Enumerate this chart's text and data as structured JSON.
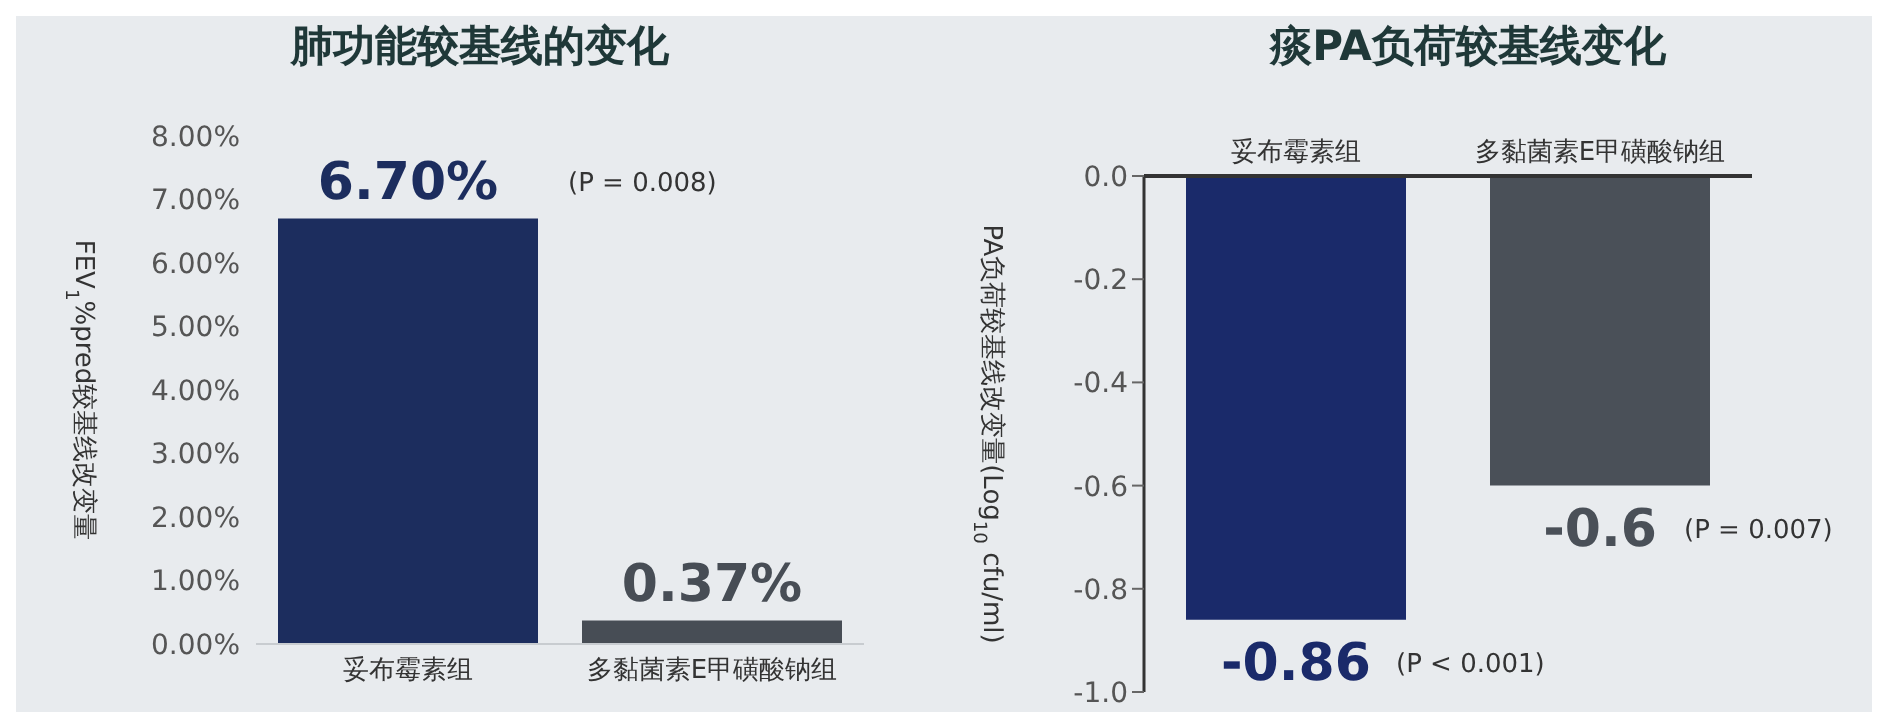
{
  "chart_data": [
    {
      "type": "bar",
      "title": "肺功能较基线的变化",
      "ylabel": "FEV$_{1}$%pred较基线改变量",
      "categories": [
        "妥布霉素组",
        "多黏菌素E甲磺酸钠组"
      ],
      "values": [
        6.7,
        0.37
      ],
      "colors": [
        "#1c2d5e",
        "#474d55"
      ],
      "value_labels": [
        "6.70%",
        "0.37%"
      ],
      "ylim": [
        0,
        8
      ],
      "yticks": [
        {
          "value": 0,
          "label": "0.00%"
        },
        {
          "value": 1,
          "label": "1.00%"
        },
        {
          "value": 2,
          "label": "2.00%"
        },
        {
          "value": 3,
          "label": "3.00%"
        },
        {
          "value": 4,
          "label": "4.00%"
        },
        {
          "value": 5,
          "label": "5.00%"
        },
        {
          "value": 6,
          "label": "6.00%"
        },
        {
          "value": 7,
          "label": "7.00%"
        },
        {
          "value": 8,
          "label": "8.00%"
        }
      ],
      "annotations": [
        "(P = 0.008)"
      ]
    },
    {
      "type": "bar",
      "title": "痰PA负荷较基线变化",
      "ylabel": "PA负荷较基线改变量(Log$_{10}$ cfu/ml)",
      "categories": [
        "妥布霉素组",
        "多黏菌素E甲磺酸钠组"
      ],
      "values": [
        -0.86,
        -0.6
      ],
      "colors": [
        "#1a2a6a",
        "#4a5058"
      ],
      "value_labels": [
        "-0.86",
        "-0.6"
      ],
      "ylim": [
        -1,
        0
      ],
      "yticks": [
        {
          "value": -1,
          "label": "-1.0"
        },
        {
          "value": -0.8,
          "label": "-0.8"
        },
        {
          "value": -0.6,
          "label": "-0.6"
        },
        {
          "value": -0.4,
          "label": "-0.4"
        },
        {
          "value": -0.2,
          "label": "-0.2"
        },
        {
          "value": 0,
          "label": "0.0"
        }
      ],
      "annotations": [
        "(P < 0.001)",
        "(P = 0.007)"
      ]
    }
  ]
}
